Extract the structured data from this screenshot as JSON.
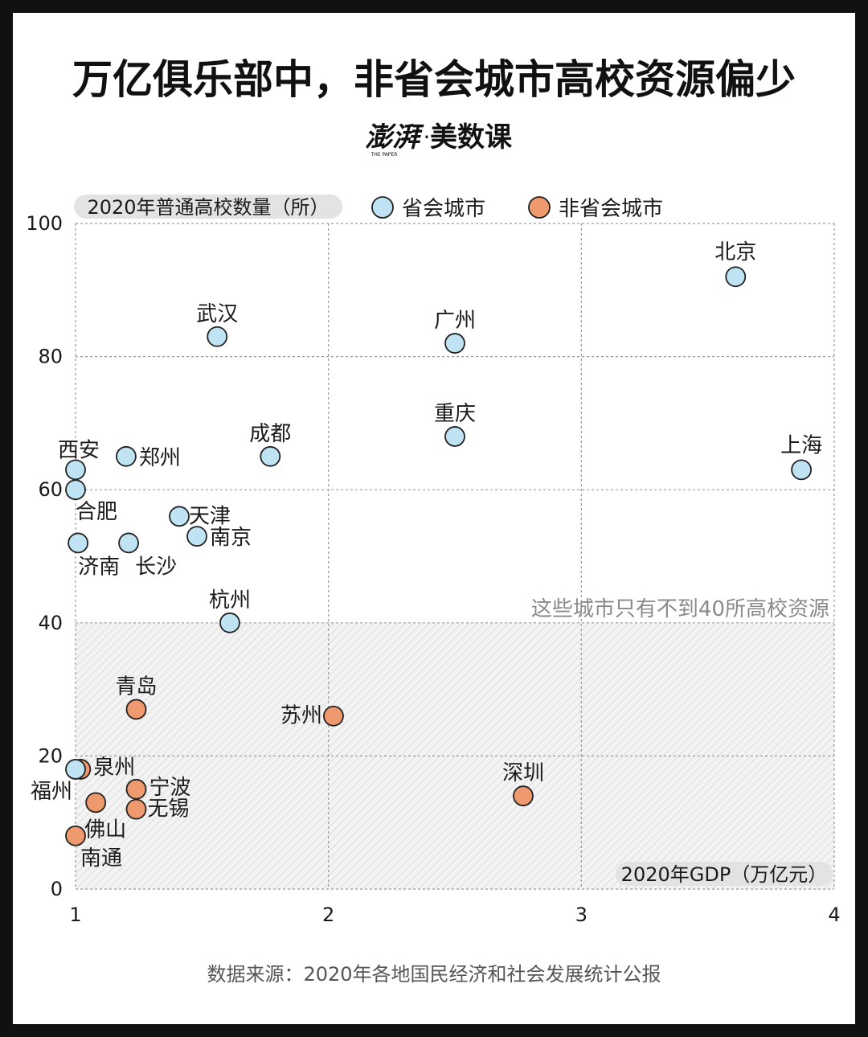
{
  "title": "万亿俱乐部中，非省会城市高校资源偏少",
  "brand": {
    "name": "澎湃",
    "sub": "THE PAPER",
    "separator": "·",
    "column": "美数课"
  },
  "source": "数据来源：2020年各地国民经济和社会发展统计公报",
  "colors": {
    "capital": "#bfe3f3",
    "non_capital": "#ef9a6e",
    "stroke": "#222222",
    "shade": "#efefef",
    "grid": "#9a9a9a",
    "pill": "#e3e3e3",
    "annotation": "#8a8a8a"
  },
  "chart_data": {
    "type": "scatter",
    "xlabel": "2020年GDP（万亿元）",
    "ylabel": "2020年普通高校数量（所）",
    "xlim": [
      1,
      4
    ],
    "ylim": [
      0,
      100
    ],
    "x_ticks": [
      "1",
      "2",
      "3",
      "4"
    ],
    "y_ticks": [
      "0",
      "20",
      "40",
      "60",
      "80",
      "100"
    ],
    "grid": true,
    "shaded_region": {
      "y_from": 0,
      "y_to": 40,
      "label": "这些城市只有不到40所高校资源"
    },
    "legend": {
      "placement": "top",
      "entries": [
        "省会城市",
        "非省会城市"
      ]
    },
    "series": [
      {
        "name": "省会城市",
        "points": [
          {
            "label": "北京",
            "x": 3.61,
            "y": 92
          },
          {
            "label": "上海",
            "x": 3.87,
            "y": 63
          },
          {
            "label": "广州",
            "x": 2.5,
            "y": 82
          },
          {
            "label": "重庆",
            "x": 2.5,
            "y": 68
          },
          {
            "label": "成都",
            "x": 1.77,
            "y": 65
          },
          {
            "label": "武汉",
            "x": 1.56,
            "y": 83
          },
          {
            "label": "杭州",
            "x": 1.61,
            "y": 40
          },
          {
            "label": "南京",
            "x": 1.48,
            "y": 53
          },
          {
            "label": "天津",
            "x": 1.41,
            "y": 56
          },
          {
            "label": "郑州",
            "x": 1.2,
            "y": 65
          },
          {
            "label": "长沙",
            "x": 1.21,
            "y": 52
          },
          {
            "label": "西安",
            "x": 1.0,
            "y": 63
          },
          {
            "label": "合肥",
            "x": 1.0,
            "y": 60
          },
          {
            "label": "济南",
            "x": 1.01,
            "y": 52
          },
          {
            "label": "福州",
            "x": 1.0,
            "y": 18
          }
        ]
      },
      {
        "name": "非省会城市",
        "points": [
          {
            "label": "苏州",
            "x": 2.02,
            "y": 26
          },
          {
            "label": "深圳",
            "x": 2.77,
            "y": 14
          },
          {
            "label": "青岛",
            "x": 1.24,
            "y": 27
          },
          {
            "label": "宁波",
            "x": 1.24,
            "y": 15
          },
          {
            "label": "无锡",
            "x": 1.24,
            "y": 12
          },
          {
            "label": "佛山",
            "x": 1.08,
            "y": 13
          },
          {
            "label": "泉州",
            "x": 1.02,
            "y": 18
          },
          {
            "label": "南通",
            "x": 1.0,
            "y": 8
          }
        ]
      }
    ]
  }
}
